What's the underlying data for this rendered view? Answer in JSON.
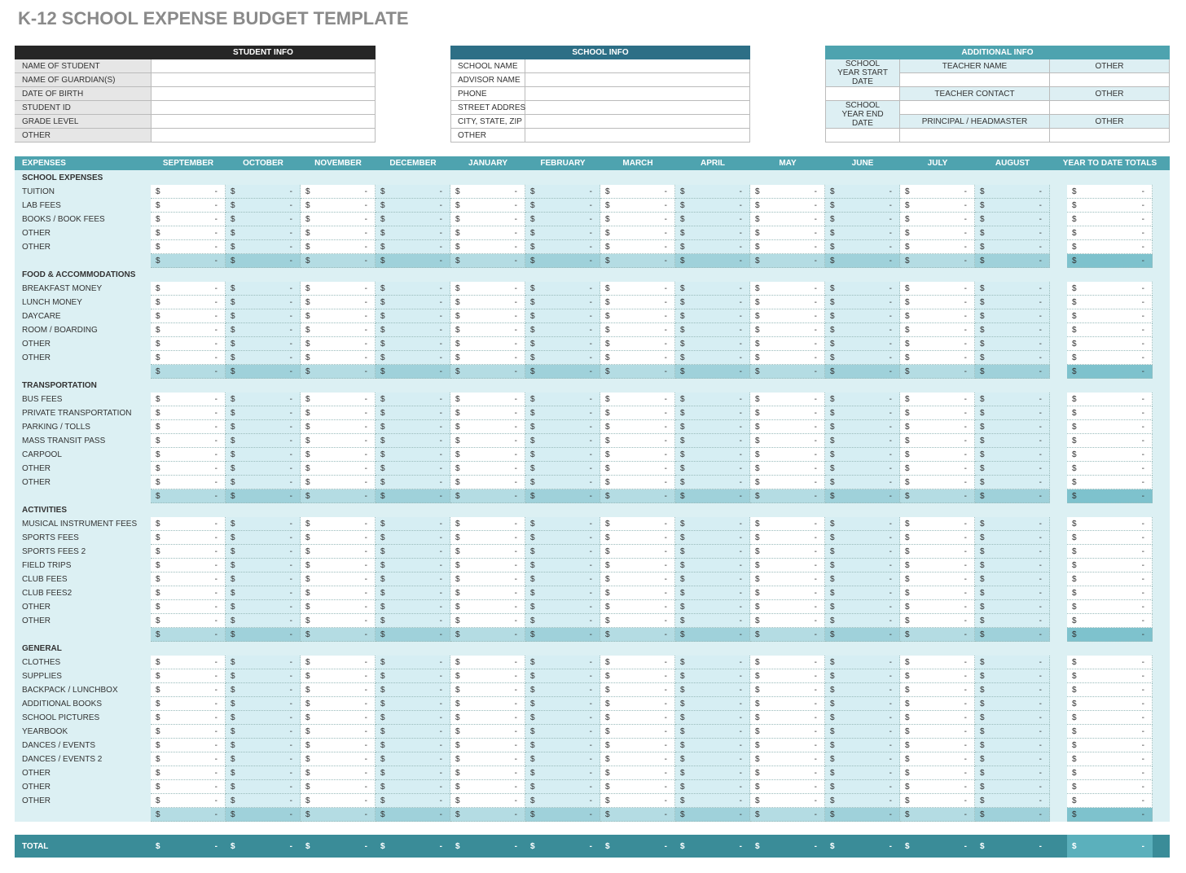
{
  "title": "K-12 SCHOOL EXPENSE BUDGET TEMPLATE",
  "student_info": {
    "header": "STUDENT INFO",
    "fields": [
      "NAME OF STUDENT",
      "NAME OF GUARDIAN(S)",
      "DATE OF BIRTH",
      "STUDENT ID",
      "GRADE LEVEL",
      "OTHER"
    ]
  },
  "school_info": {
    "header": "SCHOOL INFO",
    "fields": [
      "SCHOOL NAME",
      "ADVISOR NAME",
      "PHONE",
      "STREET ADDRESS",
      "CITY, STATE, ZIP",
      "OTHER"
    ]
  },
  "additional_info": {
    "header": "ADDITIONAL INFO",
    "school_year_start": "SCHOOL YEAR START DATE",
    "school_year_end": "SCHOOL YEAR END DATE",
    "middle": [
      "TEACHER NAME",
      "TEACHER CONTACT",
      "PRINCIPAL / HEADMASTER"
    ],
    "right": [
      "OTHER",
      "OTHER",
      "OTHER"
    ]
  },
  "expenses": {
    "header": "EXPENSES",
    "columns": [
      "SEPTEMBER",
      "OCTOBER",
      "NOVEMBER",
      "DECEMBER",
      "JANUARY",
      "FEBRUARY",
      "MARCH",
      "APRIL",
      "MAY",
      "JUNE",
      "JULY",
      "AUGUST",
      "YEAR TO DATE TOTALS"
    ],
    "sections": [
      {
        "title": "SCHOOL EXPENSES",
        "items": [
          "TUITION",
          "LAB FEES",
          "BOOKS / BOOK FEES",
          "OTHER",
          "OTHER"
        ]
      },
      {
        "title": "FOOD & ACCOMMODATIONS",
        "items": [
          "BREAKFAST MONEY",
          "LUNCH MONEY",
          "DAYCARE",
          "ROOM / BOARDING",
          "OTHER",
          "OTHER"
        ]
      },
      {
        "title": "TRANSPORTATION",
        "items": [
          "BUS FEES",
          "PRIVATE TRANSPORTATION",
          "PARKING / TOLLS",
          "MASS TRANSIT PASS",
          "CARPOOL",
          "OTHER",
          "OTHER"
        ]
      },
      {
        "title": "ACTIVITIES",
        "items": [
          "MUSICAL INSTRUMENT FEES",
          "SPORTS FEES",
          "SPORTS FEES 2",
          "FIELD TRIPS",
          "CLUB FEES",
          "CLUB FEES2",
          "OTHER",
          "OTHER"
        ]
      },
      {
        "title": "GENERAL",
        "items": [
          "CLOTHES",
          "SUPPLIES",
          "BACKPACK / LUNCHBOX",
          "ADDITIONAL BOOKS",
          "SCHOOL PICTURES",
          "YEARBOOK",
          "DANCES / EVENTS",
          "DANCES / EVENTS 2",
          "OTHER",
          "OTHER",
          "OTHER"
        ]
      }
    ],
    "cell": {
      "currency": "$",
      "amount": "-"
    },
    "total_label": "TOTAL"
  }
}
